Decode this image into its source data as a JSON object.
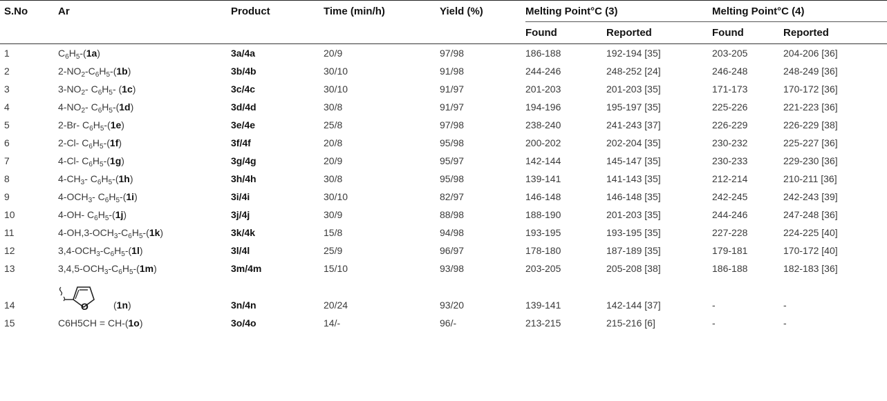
{
  "headers": {
    "sno": "S.No",
    "ar": "Ar",
    "product": "Product",
    "time": "Time (min/h)",
    "yield": "Yield (%)",
    "mp3": "Melting Point°C (3)",
    "mp4": "Melting Point°C (4)",
    "found3": "Found",
    "reported3": "Reported",
    "found4": "Found",
    "reported4": "Reported"
  },
  "rows": [
    {
      "sno": "1",
      "ar": [
        [
          "t",
          "C"
        ],
        [
          "s",
          "6"
        ],
        [
          "t",
          "H"
        ],
        [
          "s",
          "5"
        ],
        [
          "t",
          "-("
        ],
        [
          "b",
          "1a"
        ],
        [
          "t",
          ")"
        ]
      ],
      "product": "3a/4a",
      "time": "20/9",
      "yield": "97/98",
      "found3": "186-188",
      "reported3": "192-194 [35]",
      "found4": "203-205",
      "reported4": "204-206 [36]"
    },
    {
      "sno": "2",
      "ar": [
        [
          "t",
          "2-NO"
        ],
        [
          "s",
          "2"
        ],
        [
          "t",
          "-C"
        ],
        [
          "s",
          "6"
        ],
        [
          "t",
          "H"
        ],
        [
          "s",
          "5"
        ],
        [
          "t",
          "-("
        ],
        [
          "b",
          "1b"
        ],
        [
          "t",
          ")"
        ]
      ],
      "product": "3b/4b",
      "time": "30/10",
      "yield": "91/98",
      "found3": "244-246",
      "reported3": "248-252 [24]",
      "found4": "246-248",
      "reported4": "248-249 [36]"
    },
    {
      "sno": "3",
      "ar": [
        [
          "t",
          "3-NO"
        ],
        [
          "s",
          "2"
        ],
        [
          "t",
          "- C"
        ],
        [
          "s",
          "6"
        ],
        [
          "t",
          "H"
        ],
        [
          "s",
          "5"
        ],
        [
          "t",
          "- ("
        ],
        [
          "b",
          "1c"
        ],
        [
          "t",
          ")"
        ]
      ],
      "product": "3c/4c",
      "time": "30/10",
      "yield": "91/97",
      "found3": "201-203",
      "reported3": "201-203 [35]",
      "found4": "171-173",
      "reported4": "170-172 [36]"
    },
    {
      "sno": "4",
      "ar": [
        [
          "t",
          "4-NO"
        ],
        [
          "s",
          "2"
        ],
        [
          "t",
          "- C"
        ],
        [
          "s",
          "6"
        ],
        [
          "t",
          "H"
        ],
        [
          "s",
          "5"
        ],
        [
          "t",
          "-("
        ],
        [
          "b",
          "1d"
        ],
        [
          "t",
          ")"
        ]
      ],
      "product": "3d/4d",
      "time": "30/8",
      "yield": "91/97",
      "found3": "194-196",
      "reported3": "195-197 [35]",
      "found4": "225-226",
      "reported4": "221-223 [36]"
    },
    {
      "sno": "5",
      "ar": [
        [
          "t",
          "2-Br- C"
        ],
        [
          "s",
          "6"
        ],
        [
          "t",
          "H"
        ],
        [
          "s",
          "5"
        ],
        [
          "t",
          "-("
        ],
        [
          "b",
          "1e"
        ],
        [
          "t",
          ")"
        ]
      ],
      "product": "3e/4e",
      "time": "25/8",
      "yield": "97/98",
      "found3": "238-240",
      "reported3": "241-243 [37]",
      "found4": "226-229",
      "reported4": "226-229 [38]"
    },
    {
      "sno": "6",
      "ar": [
        [
          "t",
          "2-Cl- C"
        ],
        [
          "s",
          "6"
        ],
        [
          "t",
          "H"
        ],
        [
          "s",
          "5"
        ],
        [
          "t",
          "-("
        ],
        [
          "b",
          "1f"
        ],
        [
          "t",
          ")"
        ]
      ],
      "product": "3f/4f",
      "time": "20/8",
      "yield": "95/98",
      "found3": "200-202",
      "reported3": "202-204 [35]",
      "found4": "230-232",
      "reported4": "225-227 [36]"
    },
    {
      "sno": "7",
      "ar": [
        [
          "t",
          "4-Cl- C"
        ],
        [
          "s",
          "6"
        ],
        [
          "t",
          "H"
        ],
        [
          "s",
          "5"
        ],
        [
          "t",
          "-("
        ],
        [
          "b",
          "1g"
        ],
        [
          "t",
          ")"
        ]
      ],
      "product": "3g/4g",
      "time": "20/9",
      "yield": "95/97",
      "found3": "142-144",
      "reported3": "145-147 [35]",
      "found4": "230-233",
      "reported4": "229-230 [36]"
    },
    {
      "sno": "8",
      "ar": [
        [
          "t",
          "4-CH"
        ],
        [
          "s",
          "3"
        ],
        [
          "t",
          "- C"
        ],
        [
          "s",
          "6"
        ],
        [
          "t",
          "H"
        ],
        [
          "s",
          "5"
        ],
        [
          "t",
          "-("
        ],
        [
          "b",
          "1h"
        ],
        [
          "t",
          ")"
        ]
      ],
      "product": "3h/4h",
      "time": "30/8",
      "yield": "95/98",
      "found3": "139-141",
      "reported3": "141-143 [35]",
      "found4": "212-214",
      "reported4": "210-211 [36]"
    },
    {
      "sno": "9",
      "ar": [
        [
          "t",
          "4-OCH"
        ],
        [
          "s",
          "3"
        ],
        [
          "t",
          "- C"
        ],
        [
          "s",
          "6"
        ],
        [
          "t",
          "H"
        ],
        [
          "s",
          "5"
        ],
        [
          "t",
          "-("
        ],
        [
          "b",
          "1i"
        ],
        [
          "t",
          ")"
        ]
      ],
      "product": "3i/4i",
      "time": "30/10",
      "yield": "82/97",
      "found3": "146-148",
      "reported3": "146-148 [35]",
      "found4": "242-245",
      "reported4": "242-243 [39]"
    },
    {
      "sno": "10",
      "ar": [
        [
          "t",
          "4-OH- C"
        ],
        [
          "s",
          "6"
        ],
        [
          "t",
          "H"
        ],
        [
          "s",
          "5"
        ],
        [
          "t",
          "-("
        ],
        [
          "b",
          "1j"
        ],
        [
          "t",
          ")"
        ]
      ],
      "product": "3j/4j",
      "time": "30/9",
      "yield": "88/98",
      "found3": "188-190",
      "reported3": "201-203 [35]",
      "found4": "244-246",
      "reported4": "247-248 [36]"
    },
    {
      "sno": "11",
      "ar": [
        [
          "t",
          "4-OH,3-OCH"
        ],
        [
          "s",
          "3"
        ],
        [
          "t",
          "-C"
        ],
        [
          "s",
          "6"
        ],
        [
          "t",
          "H"
        ],
        [
          "s",
          "5"
        ],
        [
          "t",
          "-("
        ],
        [
          "b",
          "1k"
        ],
        [
          "t",
          ")"
        ]
      ],
      "product": "3k/4k",
      "time": "15/8",
      "yield": "94/98",
      "found3": "193-195",
      "reported3": "193-195 [35]",
      "found4": "227-228",
      "reported4": "224-225 [40]"
    },
    {
      "sno": "12",
      "ar": [
        [
          "t",
          "3,4-OCH"
        ],
        [
          "s",
          "3"
        ],
        [
          "t",
          "-C"
        ],
        [
          "s",
          "6"
        ],
        [
          "t",
          "H"
        ],
        [
          "s",
          "5"
        ],
        [
          "t",
          "-("
        ],
        [
          "b",
          "1l"
        ],
        [
          "t",
          ")"
        ]
      ],
      "product": "3l/4l",
      "time": "25/9",
      "yield": "96/97",
      "found3": "178-180",
      "reported3": "187-189 [35]",
      "found4": "179-181",
      "reported4": "170-172 [40]"
    },
    {
      "sno": "13",
      "ar": [
        [
          "t",
          "3,4,5-OCH"
        ],
        [
          "s",
          "3"
        ],
        [
          "t",
          "-C"
        ],
        [
          "s",
          "6"
        ],
        [
          "t",
          "H"
        ],
        [
          "s",
          "5"
        ],
        [
          "t",
          "-("
        ],
        [
          "b",
          "1m"
        ],
        [
          "t",
          ")"
        ]
      ],
      "product": "3m/4m",
      "time": "15/10",
      "yield": "93/98",
      "found3": "203-205",
      "reported3": "205-208 [38]",
      "found4": "186-188",
      "reported4": "182-183 [36]"
    },
    {
      "sno": "14",
      "ar": [
        [
          "furan",
          "furan-ring"
        ],
        [
          "t",
          "("
        ],
        [
          "b",
          "1n"
        ],
        [
          "t",
          ")"
        ]
      ],
      "product": "3n/4n",
      "time": "20/24",
      "yield": "93/20",
      "found3": "139-141",
      "reported3": "142-144 [37]",
      "found4": "-",
      "reported4": "-"
    },
    {
      "sno": "15",
      "ar": [
        [
          "t",
          "C6H5CH = CH-("
        ],
        [
          "b",
          "1o"
        ],
        [
          "t",
          ")"
        ]
      ],
      "product": "3o/4o",
      "time": "14/-",
      "yield": "96/-",
      "found3": "213-215",
      "reported3": "215-216 [6]",
      "found4": "-",
      "reported4": "-"
    }
  ],
  "furan_atom": "O"
}
